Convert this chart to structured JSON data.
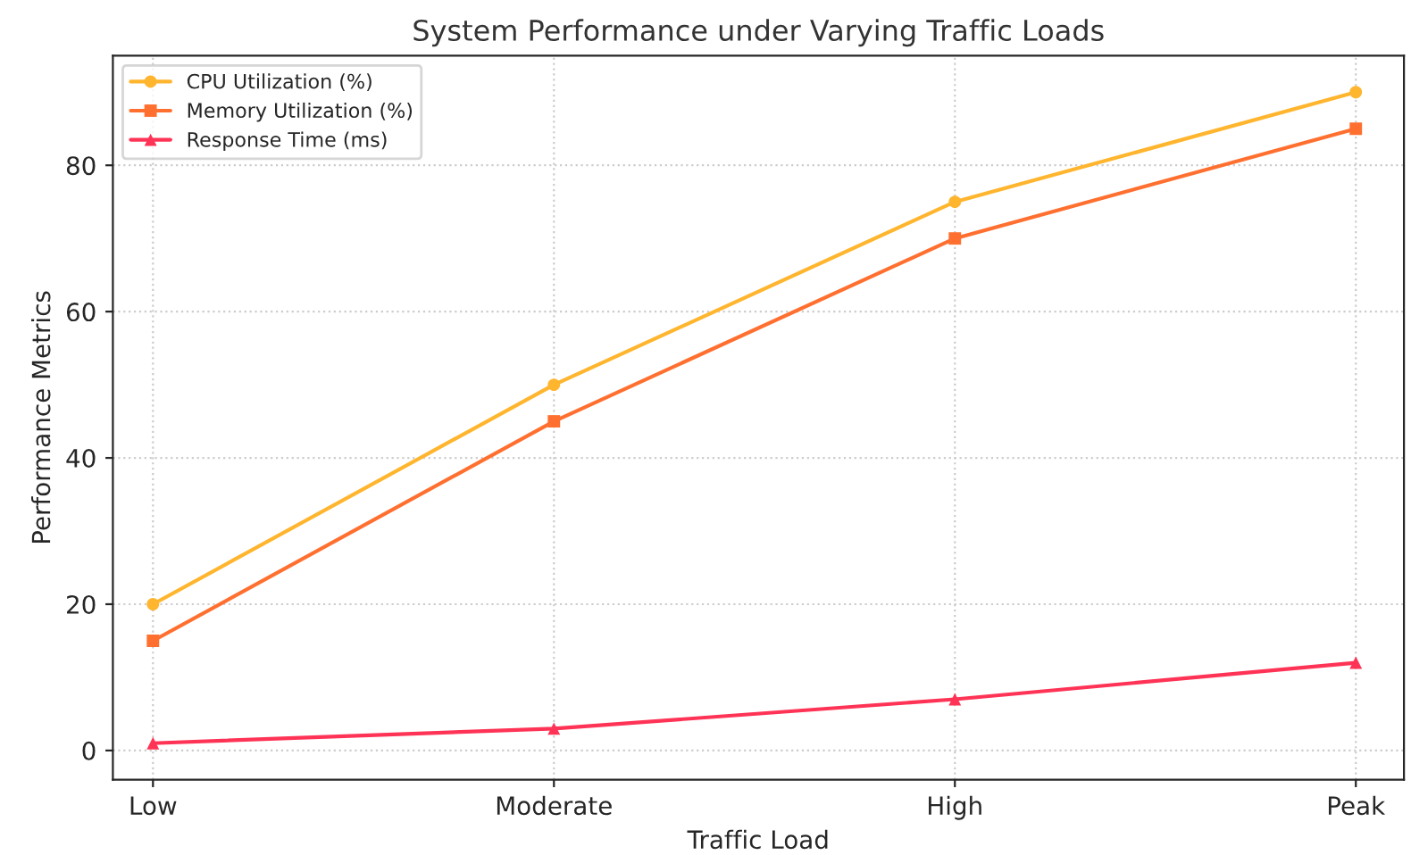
{
  "chart_data": {
    "type": "line",
    "title": "System Performance under Varying Traffic Loads",
    "xlabel": "Traffic Load",
    "ylabel": "Performance Metrics",
    "categories": [
      "Low",
      "Moderate",
      "High",
      "Peak"
    ],
    "series": [
      {
        "name": "CPU Utilization (%)",
        "color": "#ffb52e",
        "values": [
          20,
          50,
          75,
          90
        ],
        "marker": "circle"
      },
      {
        "name": "Memory Utilization (%)",
        "color": "#ff7030",
        "values": [
          15,
          45,
          70,
          85
        ],
        "marker": "square"
      },
      {
        "name": "Response Time (ms)",
        "color": "#ff3355",
        "values": [
          1,
          3,
          7,
          12
        ],
        "marker": "triangle"
      }
    ],
    "ylim": [
      -4,
      95
    ],
    "yticks": [
      0,
      20,
      40,
      60,
      80
    ],
    "grid": true,
    "legend": "top left",
    "line_style": "solid"
  }
}
